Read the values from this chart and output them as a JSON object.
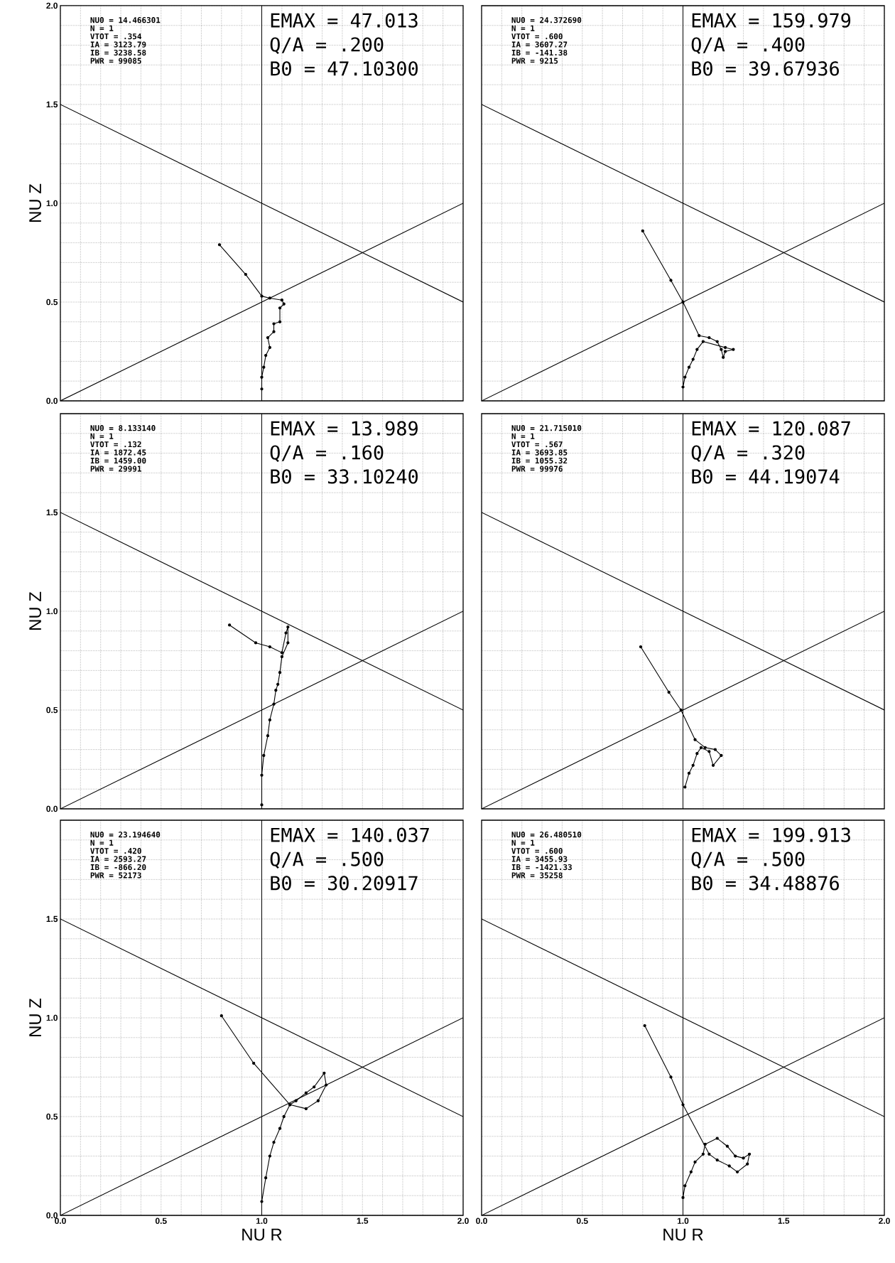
{
  "chart_data": [
    {
      "type": "line",
      "xlim": [
        0,
        2
      ],
      "ylim": [
        0,
        2
      ],
      "grid": true,
      "tick_labels": "y",
      "ylabel": "NU Z",
      "xticks": [
        {
          "value": 0,
          "label": null
        },
        {
          "value": 0.1,
          "label": null
        },
        {
          "value": 0.2,
          "label": null
        },
        {
          "value": 0.3,
          "label": null
        },
        {
          "value": 0.4,
          "label": null
        },
        {
          "value": 0.5,
          "label": null
        },
        {
          "value": 0.6,
          "label": null
        },
        {
          "value": 0.7,
          "label": null
        },
        {
          "value": 0.8,
          "label": null
        },
        {
          "value": 0.9,
          "label": null
        },
        {
          "value": 1,
          "label": null
        },
        {
          "value": 1.1,
          "label": null
        },
        {
          "value": 1.2,
          "label": null
        },
        {
          "value": 1.3,
          "label": null
        },
        {
          "value": 1.4,
          "label": null
        },
        {
          "value": 1.5,
          "label": null
        },
        {
          "value": 1.6,
          "label": null
        },
        {
          "value": 1.7,
          "label": null
        },
        {
          "value": 1.8,
          "label": null
        },
        {
          "value": 1.9,
          "label": null
        },
        {
          "value": 2,
          "label": null
        }
      ],
      "yticks": [
        {
          "value": 0,
          "label": "0.0"
        },
        {
          "value": 0.1,
          "label": null
        },
        {
          "value": 0.2,
          "label": null
        },
        {
          "value": 0.3,
          "label": null
        },
        {
          "value": 0.4,
          "label": null
        },
        {
          "value": 0.5,
          "label": "0.5"
        },
        {
          "value": 0.6,
          "label": null
        },
        {
          "value": 0.7,
          "label": null
        },
        {
          "value": 0.8,
          "label": null
        },
        {
          "value": 0.9,
          "label": null
        },
        {
          "value": 1,
          "label": "1.0"
        },
        {
          "value": 1.1,
          "label": null
        },
        {
          "value": 1.2,
          "label": null
        },
        {
          "value": 1.3,
          "label": null
        },
        {
          "value": 1.4,
          "label": null
        },
        {
          "value": 1.5,
          "label": "1.5"
        },
        {
          "value": 1.6,
          "label": null
        },
        {
          "value": 1.7,
          "label": null
        },
        {
          "value": 1.8,
          "label": null
        },
        {
          "value": 1.9,
          "label": null
        },
        {
          "value": 2,
          "label": "2.0"
        }
      ],
      "annotations": [
        "NU0 = 14.466301",
        "N = 1",
        "VTOT = .354",
        "IA = 3123.79",
        "IB = 3238.58",
        "PWR = 99085",
        "EMAX = 47.013",
        "Q/A = .200",
        "B0 = 47.10300"
      ],
      "ref_lines": [
        {
          "axis": "x",
          "value": 1,
          "color": "#000000"
        }
      ],
      "series": [
        {
          "x": [
            0,
            2
          ],
          "values": [
            1.5,
            0.5
          ],
          "color": "#000000",
          "marker": "none"
        },
        {
          "x": [
            0,
            2
          ],
          "values": [
            0,
            1
          ],
          "color": "#000000",
          "marker": "none"
        },
        {
          "x": [
            0.79,
            0.92,
            1.0,
            1.04,
            1.1,
            1.11,
            1.09,
            1.09,
            1.06,
            1.06,
            1.03,
            1.04,
            1.02,
            1.01,
            1.0,
            1.0
          ],
          "values": [
            0.79,
            0.64,
            0.53,
            0.52,
            0.51,
            0.49,
            0.47,
            0.4,
            0.39,
            0.35,
            0.32,
            0.27,
            0.23,
            0.17,
            0.12,
            0.06
          ],
          "color": "#000000",
          "marker": "circle"
        }
      ]
    },
    {
      "type": "line",
      "xlim": [
        0,
        2
      ],
      "ylim": [
        0,
        2
      ],
      "grid": true,
      "tick_labels": false,
      "xticks": [
        {
          "value": 0,
          "label": null
        },
        {
          "value": 0.1,
          "label": null
        },
        {
          "value": 0.2,
          "label": null
        },
        {
          "value": 0.3,
          "label": null
        },
        {
          "value": 0.4,
          "label": null
        },
        {
          "value": 0.5,
          "label": null
        },
        {
          "value": 0.6,
          "label": null
        },
        {
          "value": 0.7,
          "label": null
        },
        {
          "value": 0.8,
          "label": null
        },
        {
          "value": 0.9,
          "label": null
        },
        {
          "value": 1,
          "label": null
        },
        {
          "value": 1.1,
          "label": null
        },
        {
          "value": 1.2,
          "label": null
        },
        {
          "value": 1.3,
          "label": null
        },
        {
          "value": 1.4,
          "label": null
        },
        {
          "value": 1.5,
          "label": null
        },
        {
          "value": 1.6,
          "label": null
        },
        {
          "value": 1.7,
          "label": null
        },
        {
          "value": 1.8,
          "label": null
        },
        {
          "value": 1.9,
          "label": null
        },
        {
          "value": 2,
          "label": null
        }
      ],
      "yticks": [
        {
          "value": 0,
          "label": null
        },
        {
          "value": 0.1,
          "label": null
        },
        {
          "value": 0.2,
          "label": null
        },
        {
          "value": 0.3,
          "label": null
        },
        {
          "value": 0.4,
          "label": null
        },
        {
          "value": 0.5,
          "label": null
        },
        {
          "value": 0.6,
          "label": null
        },
        {
          "value": 0.7,
          "label": null
        },
        {
          "value": 0.8,
          "label": null
        },
        {
          "value": 0.9,
          "label": null
        },
        {
          "value": 1,
          "label": null
        },
        {
          "value": 1.1,
          "label": null
        },
        {
          "value": 1.2,
          "label": null
        },
        {
          "value": 1.3,
          "label": null
        },
        {
          "value": 1.4,
          "label": null
        },
        {
          "value": 1.5,
          "label": null
        },
        {
          "value": 1.6,
          "label": null
        },
        {
          "value": 1.7,
          "label": null
        },
        {
          "value": 1.8,
          "label": null
        },
        {
          "value": 1.9,
          "label": null
        },
        {
          "value": 2,
          "label": null
        }
      ],
      "annotations": [
        "NU0 = 24.372690",
        "N = 1",
        "VTOT = .600",
        "IA = 3607.27",
        "IB = -141.38",
        "PWR = 9215",
        "EMAX = 159.979",
        "Q/A = .400",
        "B0 = 39.67936"
      ],
      "ref_lines": [
        {
          "axis": "x",
          "value": 1,
          "color": "#000000"
        }
      ],
      "series": [
        {
          "x": [
            0,
            2
          ],
          "values": [
            1.5,
            0.5
          ],
          "color": "#000000",
          "marker": "none"
        },
        {
          "x": [
            0,
            2
          ],
          "values": [
            0,
            1
          ],
          "color": "#000000",
          "marker": "none"
        },
        {
          "x": [
            0.8,
            0.94,
            1.0,
            1.08,
            1.13,
            1.17,
            1.19,
            1.2,
            1.21,
            1.25,
            1.21,
            1.1,
            1.07,
            1.05,
            1.03,
            1.01,
            1.0
          ],
          "values": [
            0.86,
            0.61,
            0.5,
            0.33,
            0.32,
            0.3,
            0.26,
            0.22,
            0.25,
            0.26,
            0.27,
            0.3,
            0.26,
            0.21,
            0.17,
            0.12,
            0.07
          ],
          "color": "#000000",
          "marker": "circle"
        }
      ]
    },
    {
      "type": "line",
      "xlim": [
        0,
        2
      ],
      "ylim": [
        0,
        2
      ],
      "grid": true,
      "tick_labels": "y",
      "ylabel": "NU Z",
      "xticks": [
        {
          "value": 0,
          "label": null
        },
        {
          "value": 0.1,
          "label": null
        },
        {
          "value": 0.2,
          "label": null
        },
        {
          "value": 0.3,
          "label": null
        },
        {
          "value": 0.4,
          "label": null
        },
        {
          "value": 0.5,
          "label": null
        },
        {
          "value": 0.6,
          "label": null
        },
        {
          "value": 0.7,
          "label": null
        },
        {
          "value": 0.8,
          "label": null
        },
        {
          "value": 0.9,
          "label": null
        },
        {
          "value": 1,
          "label": null
        },
        {
          "value": 1.1,
          "label": null
        },
        {
          "value": 1.2,
          "label": null
        },
        {
          "value": 1.3,
          "label": null
        },
        {
          "value": 1.4,
          "label": null
        },
        {
          "value": 1.5,
          "label": null
        },
        {
          "value": 1.6,
          "label": null
        },
        {
          "value": 1.7,
          "label": null
        },
        {
          "value": 1.8,
          "label": null
        },
        {
          "value": 1.9,
          "label": null
        },
        {
          "value": 2,
          "label": null
        }
      ],
      "yticks": [
        {
          "value": 0,
          "label": "0.0"
        },
        {
          "value": 0.1,
          "label": null
        },
        {
          "value": 0.2,
          "label": null
        },
        {
          "value": 0.3,
          "label": null
        },
        {
          "value": 0.4,
          "label": null
        },
        {
          "value": 0.5,
          "label": "0.5"
        },
        {
          "value": 0.6,
          "label": null
        },
        {
          "value": 0.7,
          "label": null
        },
        {
          "value": 0.8,
          "label": null
        },
        {
          "value": 0.9,
          "label": null
        },
        {
          "value": 1,
          "label": "1.0"
        },
        {
          "value": 1.1,
          "label": null
        },
        {
          "value": 1.2,
          "label": null
        },
        {
          "value": 1.3,
          "label": null
        },
        {
          "value": 1.4,
          "label": null
        },
        {
          "value": 1.5,
          "label": "1.5"
        },
        {
          "value": 1.6,
          "label": null
        },
        {
          "value": 1.7,
          "label": null
        },
        {
          "value": 1.8,
          "label": null
        },
        {
          "value": 1.9,
          "label": null
        },
        {
          "value": 2,
          "label": null
        }
      ],
      "annotations": [
        "NU0 = 8.133140",
        "N = 1",
        "VTOT = .132",
        "IA = 1872.45",
        "IB = 1459.00",
        "PWR = 29991",
        "EMAX = 13.989",
        "Q/A = .160",
        "B0 = 33.10240"
      ],
      "ref_lines": [
        {
          "axis": "x",
          "value": 1,
          "color": "#000000"
        }
      ],
      "series": [
        {
          "x": [
            0,
            2
          ],
          "values": [
            1.5,
            0.5
          ],
          "color": "#000000",
          "marker": "none"
        },
        {
          "x": [
            0,
            2
          ],
          "values": [
            0,
            1
          ],
          "color": "#000000",
          "marker": "none"
        },
        {
          "x": [
            0.84,
            0.97,
            1.04,
            1.1,
            1.12,
            1.13,
            1.13,
            1.1,
            1.09,
            1.08,
            1.07,
            1.06,
            1.04,
            1.03,
            1.01,
            1.0,
            1.0
          ],
          "values": [
            0.93,
            0.84,
            0.82,
            0.79,
            0.89,
            0.92,
            0.84,
            0.77,
            0.69,
            0.63,
            0.6,
            0.53,
            0.45,
            0.37,
            0.27,
            0.17,
            0.02
          ],
          "color": "#000000",
          "marker": "circle"
        }
      ]
    },
    {
      "type": "line",
      "xlim": [
        0,
        2
      ],
      "ylim": [
        0,
        2
      ],
      "grid": true,
      "tick_labels": false,
      "xticks": [
        {
          "value": 0,
          "label": null
        },
        {
          "value": 0.1,
          "label": null
        },
        {
          "value": 0.2,
          "label": null
        },
        {
          "value": 0.3,
          "label": null
        },
        {
          "value": 0.4,
          "label": null
        },
        {
          "value": 0.5,
          "label": null
        },
        {
          "value": 0.6,
          "label": null
        },
        {
          "value": 0.7,
          "label": null
        },
        {
          "value": 0.8,
          "label": null
        },
        {
          "value": 0.9,
          "label": null
        },
        {
          "value": 1,
          "label": null
        },
        {
          "value": 1.1,
          "label": null
        },
        {
          "value": 1.2,
          "label": null
        },
        {
          "value": 1.3,
          "label": null
        },
        {
          "value": 1.4,
          "label": null
        },
        {
          "value": 1.5,
          "label": null
        },
        {
          "value": 1.6,
          "label": null
        },
        {
          "value": 1.7,
          "label": null
        },
        {
          "value": 1.8,
          "label": null
        },
        {
          "value": 1.9,
          "label": null
        },
        {
          "value": 2,
          "label": null
        }
      ],
      "yticks": [
        {
          "value": 0,
          "label": null
        },
        {
          "value": 0.1,
          "label": null
        },
        {
          "value": 0.2,
          "label": null
        },
        {
          "value": 0.3,
          "label": null
        },
        {
          "value": 0.4,
          "label": null
        },
        {
          "value": 0.5,
          "label": null
        },
        {
          "value": 0.6,
          "label": null
        },
        {
          "value": 0.7,
          "label": null
        },
        {
          "value": 0.8,
          "label": null
        },
        {
          "value": 0.9,
          "label": null
        },
        {
          "value": 1,
          "label": null
        },
        {
          "value": 1.1,
          "label": null
        },
        {
          "value": 1.2,
          "label": null
        },
        {
          "value": 1.3,
          "label": null
        },
        {
          "value": 1.4,
          "label": null
        },
        {
          "value": 1.5,
          "label": null
        },
        {
          "value": 1.6,
          "label": null
        },
        {
          "value": 1.7,
          "label": null
        },
        {
          "value": 1.8,
          "label": null
        },
        {
          "value": 1.9,
          "label": null
        },
        {
          "value": 2,
          "label": null
        }
      ],
      "annotations": [
        "NU0 = 21.715010",
        "N = 1",
        "VTOT = .567",
        "IA = 3693.85",
        "IB = 1055.32",
        "PWR = 99976",
        "EMAX = 120.087",
        "Q/A = .320",
        "B0 = 44.19074"
      ],
      "ref_lines": [
        {
          "axis": "x",
          "value": 1,
          "color": "#000000"
        }
      ],
      "series": [
        {
          "x": [
            0,
            2
          ],
          "values": [
            1.5,
            0.5
          ],
          "color": "#000000",
          "marker": "none"
        },
        {
          "x": [
            0,
            2
          ],
          "values": [
            0,
            1
          ],
          "color": "#000000",
          "marker": "none"
        },
        {
          "x": [
            0.79,
            0.93,
            0.99,
            1.06,
            1.11,
            1.16,
            1.19,
            1.15,
            1.13,
            1.09,
            1.07,
            1.05,
            1.03,
            1.01
          ],
          "values": [
            0.82,
            0.59,
            0.5,
            0.35,
            0.31,
            0.3,
            0.27,
            0.22,
            0.29,
            0.31,
            0.28,
            0.22,
            0.18,
            0.11
          ],
          "color": "#000000",
          "marker": "circle"
        }
      ]
    },
    {
      "type": "line",
      "xlim": [
        0,
        2
      ],
      "ylim": [
        0,
        2
      ],
      "grid": true,
      "xlabel": "NU R",
      "ylabel": "NU Z",
      "xticks": [
        {
          "value": 0,
          "label": "0.0"
        },
        {
          "value": 0.1,
          "label": null
        },
        {
          "value": 0.2,
          "label": null
        },
        {
          "value": 0.3,
          "label": null
        },
        {
          "value": 0.4,
          "label": null
        },
        {
          "value": 0.5,
          "label": "0.5"
        },
        {
          "value": 0.6,
          "label": null
        },
        {
          "value": 0.7,
          "label": null
        },
        {
          "value": 0.8,
          "label": null
        },
        {
          "value": 0.9,
          "label": null
        },
        {
          "value": 1,
          "label": "1.0"
        },
        {
          "value": 1.1,
          "label": null
        },
        {
          "value": 1.2,
          "label": null
        },
        {
          "value": 1.3,
          "label": null
        },
        {
          "value": 1.4,
          "label": null
        },
        {
          "value": 1.5,
          "label": "1.5"
        },
        {
          "value": 1.6,
          "label": null
        },
        {
          "value": 1.7,
          "label": null
        },
        {
          "value": 1.8,
          "label": null
        },
        {
          "value": 1.9,
          "label": null
        },
        {
          "value": 2,
          "label": "2.0"
        }
      ],
      "yticks": [
        {
          "value": 0,
          "label": "0.0"
        },
        {
          "value": 0.1,
          "label": null
        },
        {
          "value": 0.2,
          "label": null
        },
        {
          "value": 0.3,
          "label": null
        },
        {
          "value": 0.4,
          "label": null
        },
        {
          "value": 0.5,
          "label": "0.5"
        },
        {
          "value": 0.6,
          "label": null
        },
        {
          "value": 0.7,
          "label": null
        },
        {
          "value": 0.8,
          "label": null
        },
        {
          "value": 0.9,
          "label": null
        },
        {
          "value": 1,
          "label": "1.0"
        },
        {
          "value": 1.1,
          "label": null
        },
        {
          "value": 1.2,
          "label": null
        },
        {
          "value": 1.3,
          "label": null
        },
        {
          "value": 1.4,
          "label": null
        },
        {
          "value": 1.5,
          "label": "1.5"
        },
        {
          "value": 1.6,
          "label": null
        },
        {
          "value": 1.7,
          "label": null
        },
        {
          "value": 1.8,
          "label": null
        },
        {
          "value": 1.9,
          "label": null
        },
        {
          "value": 2,
          "label": null
        }
      ],
      "annotations": [
        "NU0 = 23.194640",
        "N = 1",
        "VTOT = .420",
        "IA = 2593.27",
        "IB = -866.20",
        "PWR = 52173",
        "EMAX = 140.037",
        "Q/A = .500",
        "B0 = 30.20917"
      ],
      "ref_lines": [
        {
          "axis": "x",
          "value": 1,
          "color": "#000000"
        }
      ],
      "series": [
        {
          "x": [
            0,
            2
          ],
          "values": [
            1.5,
            0.5
          ],
          "color": "#000000",
          "marker": "none"
        },
        {
          "x": [
            0,
            2
          ],
          "values": [
            0,
            1
          ],
          "color": "#000000",
          "marker": "none"
        },
        {
          "x": [
            0.8,
            0.96,
            1.14,
            1.22,
            1.28,
            1.32,
            1.31,
            1.26,
            1.22,
            1.17,
            1.14,
            1.11,
            1.09,
            1.06,
            1.04,
            1.02,
            1.0
          ],
          "values": [
            1.01,
            0.77,
            0.56,
            0.54,
            0.58,
            0.66,
            0.72,
            0.65,
            0.62,
            0.58,
            0.56,
            0.5,
            0.44,
            0.37,
            0.3,
            0.19,
            0.07
          ],
          "color": "#000000",
          "marker": "circle"
        }
      ]
    },
    {
      "type": "line",
      "xlim": [
        0,
        2
      ],
      "ylim": [
        0,
        2
      ],
      "grid": true,
      "tick_labels": "x",
      "xlabel": "NU R",
      "xticks": [
        {
          "value": 0,
          "label": "0.0"
        },
        {
          "value": 0.1,
          "label": null
        },
        {
          "value": 0.2,
          "label": null
        },
        {
          "value": 0.3,
          "label": null
        },
        {
          "value": 0.4,
          "label": null
        },
        {
          "value": 0.5,
          "label": "0.5"
        },
        {
          "value": 0.6,
          "label": null
        },
        {
          "value": 0.7,
          "label": null
        },
        {
          "value": 0.8,
          "label": null
        },
        {
          "value": 0.9,
          "label": null
        },
        {
          "value": 1,
          "label": "1.0"
        },
        {
          "value": 1.1,
          "label": null
        },
        {
          "value": 1.2,
          "label": null
        },
        {
          "value": 1.3,
          "label": null
        },
        {
          "value": 1.4,
          "label": null
        },
        {
          "value": 1.5,
          "label": "1.5"
        },
        {
          "value": 1.6,
          "label": null
        },
        {
          "value": 1.7,
          "label": null
        },
        {
          "value": 1.8,
          "label": null
        },
        {
          "value": 1.9,
          "label": null
        },
        {
          "value": 2,
          "label": "2.0"
        }
      ],
      "yticks": [
        {
          "value": 0,
          "label": null
        },
        {
          "value": 0.1,
          "label": null
        },
        {
          "value": 0.2,
          "label": null
        },
        {
          "value": 0.3,
          "label": null
        },
        {
          "value": 0.4,
          "label": null
        },
        {
          "value": 0.5,
          "label": null
        },
        {
          "value": 0.6,
          "label": null
        },
        {
          "value": 0.7,
          "label": null
        },
        {
          "value": 0.8,
          "label": null
        },
        {
          "value": 0.9,
          "label": null
        },
        {
          "value": 1,
          "label": null
        },
        {
          "value": 1.1,
          "label": null
        },
        {
          "value": 1.2,
          "label": null
        },
        {
          "value": 1.3,
          "label": null
        },
        {
          "value": 1.4,
          "label": null
        },
        {
          "value": 1.5,
          "label": null
        },
        {
          "value": 1.6,
          "label": null
        },
        {
          "value": 1.7,
          "label": null
        },
        {
          "value": 1.8,
          "label": null
        },
        {
          "value": 1.9,
          "label": null
        },
        {
          "value": 2,
          "label": null
        }
      ],
      "annotations": [
        "NU0 = 26.480510",
        "N = 1",
        "VTOT = .600",
        "IA = 3455.93",
        "IB = -1421.33",
        "PWR = 35258",
        "EMAX = 199.913",
        "Q/A = .500",
        "B0 = 34.48876"
      ],
      "ref_lines": [
        {
          "axis": "x",
          "value": 1,
          "color": "#000000"
        }
      ],
      "series": [
        {
          "x": [
            0,
            2
          ],
          "values": [
            1.5,
            0.5
          ],
          "color": "#000000",
          "marker": "none"
        },
        {
          "x": [
            0,
            2
          ],
          "values": [
            0,
            1
          ],
          "color": "#000000",
          "marker": "none"
        },
        {
          "x": [
            0.81,
            0.94,
            1.0,
            1.13,
            1.17,
            1.23,
            1.27,
            1.32,
            1.33,
            1.3,
            1.26,
            1.22,
            1.17,
            1.11,
            1.1,
            1.06,
            1.04,
            1.01,
            1.0
          ],
          "values": [
            0.96,
            0.7,
            0.56,
            0.31,
            0.28,
            0.25,
            0.22,
            0.26,
            0.31,
            0.29,
            0.3,
            0.35,
            0.39,
            0.36,
            0.31,
            0.27,
            0.22,
            0.15,
            0.09
          ],
          "color": "#000000",
          "marker": "circle"
        }
      ]
    }
  ]
}
